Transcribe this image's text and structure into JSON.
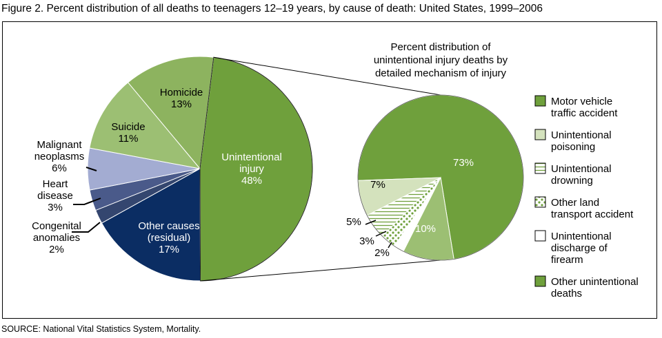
{
  "title": "Figure 2. Percent distribution of all deaths to teenagers 12–19 years, by cause of death: United States, 1999–2006",
  "source": "SOURCE: National Vital Statistics System, Mortality.",
  "colors": {
    "green": "#6fa03c",
    "light_green_tint": "#d4e2bd",
    "light_green": "#9cbf73",
    "navy": "#0b2d63",
    "lavender": "#a3acd2",
    "slate_blue": "#6d7aa8",
    "medium_blue": "#4a5a8a",
    "dark_blue": "#34466f"
  },
  "chart_data": [
    {
      "type": "pie",
      "slices": [
        {
          "label": "Unintentional injury",
          "value": 48,
          "value_label": "48%",
          "color": "#6fa03c",
          "text_color": "#ffffff",
          "label_lines": [
            "Unintentional",
            "injury",
            "48%"
          ]
        },
        {
          "label": "Other causes (residual)",
          "value": 17,
          "value_label": "17%",
          "color": "#0b2d63",
          "text_color": "#ffffff",
          "label_lines": [
            "Other causes",
            "(residual)",
            "17%"
          ]
        },
        {
          "label": "Congenital anomalies",
          "value": 2,
          "value_label": "2%",
          "color": "#34466f",
          "text_color": "#000000",
          "label_lines": [
            "Congenital",
            "anomalies",
            "2%"
          ]
        },
        {
          "label": "Heart disease",
          "value": 3,
          "value_label": "3%",
          "color": "#4a5a8a",
          "text_color": "#000000",
          "label_lines": [
            "Heart",
            "disease",
            "3%"
          ]
        },
        {
          "label": "Malignant neoplasms",
          "value": 6,
          "value_label": "6%",
          "color": "#a3acd2",
          "text_color": "#000000",
          "label_lines": [
            "Malignant",
            "neoplasms",
            "6%"
          ]
        },
        {
          "label": "Suicide",
          "value": 11,
          "value_label": "11%",
          "color": "#9cbf73",
          "text_color": "#000000",
          "label_lines": [
            "Suicide",
            "11%"
          ]
        },
        {
          "label": "Homicide",
          "value": 13,
          "value_label": "13%",
          "color": "#8db35f",
          "text_color": "#000000",
          "label_lines": [
            "Homicide",
            "13%"
          ]
        }
      ]
    },
    {
      "type": "pie",
      "title_lines": [
        "Percent distribution of",
        "unintentional injury deaths by",
        "detailed mechanism of injury"
      ],
      "slices": [
        {
          "label": "Motor vehicle traffic accident",
          "value": 73,
          "value_label": "73%",
          "pattern": "solid",
          "color": "#6fa03c",
          "text_color": "#ffffff"
        },
        {
          "label": "Other unintentional deaths",
          "value": 10,
          "value_label": "10%",
          "pattern": "solid",
          "color": "#9cbf73",
          "text_color": "#ffffff"
        },
        {
          "label": "Unintentional discharge of firearm",
          "value": 2,
          "value_label": "2%",
          "pattern": "white",
          "color": "#ffffff",
          "text_color": "#000000"
        },
        {
          "label": "Other land transport accident",
          "value": 3,
          "value_label": "3%",
          "pattern": "dots",
          "color": "#6fa03c",
          "text_color": "#000000"
        },
        {
          "label": "Unintentional drowning",
          "value": 5,
          "value_label": "5%",
          "pattern": "hlines",
          "color": "#6fa03c",
          "text_color": "#000000"
        },
        {
          "label": "Unintentional poisoning",
          "value": 7,
          "value_label": "7%",
          "pattern": "solid",
          "color": "#d4e2bd",
          "text_color": "#000000"
        }
      ],
      "legend": [
        {
          "lines": [
            "Motor vehicle",
            "traffic accident"
          ],
          "pattern": "solid",
          "color": "#6fa03c"
        },
        {
          "lines": [
            "Unintentional",
            "poisoning"
          ],
          "pattern": "solid",
          "color": "#d4e2bd"
        },
        {
          "lines": [
            "Unintentional",
            "drowning"
          ],
          "pattern": "hlines",
          "color": "#6fa03c"
        },
        {
          "lines": [
            "Other land",
            "transport accident"
          ],
          "pattern": "dots",
          "color": "#6fa03c"
        },
        {
          "lines": [
            "Unintentional",
            "discharge of",
            "firearm"
          ],
          "pattern": "white",
          "color": "#ffffff"
        },
        {
          "lines": [
            "Other unintentional",
            "deaths"
          ],
          "pattern": "solid",
          "color": "#6fa03c"
        }
      ],
      "legend_placement": "right"
    }
  ]
}
